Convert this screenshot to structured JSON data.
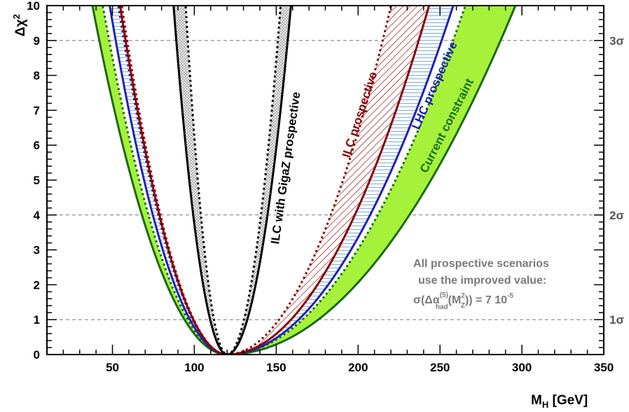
{
  "chart_data": {
    "type": "line",
    "x_range": [
      10,
      350
    ],
    "y_range": [
      0,
      10
    ],
    "x_ticks": [
      50,
      100,
      150,
      200,
      250,
      300,
      350
    ],
    "y_ticks": [
      0,
      1,
      2,
      3,
      4,
      5,
      6,
      7,
      8,
      9,
      10
    ],
    "xlabel_main": "M",
    "xlabel_sub": "H",
    "xlabel_unit": " [GeV]",
    "ylabel_delta": "Δχ",
    "ylabel_sup": "2",
    "grid": false,
    "sigma_lines": [
      {
        "y": 1,
        "label": "1σ"
      },
      {
        "y": 4,
        "label": "2σ"
      },
      {
        "y": 9,
        "label": "3σ"
      }
    ],
    "bands": [
      {
        "name": "Current constraint",
        "color": "#a6f23a",
        "style": "filled",
        "inner": {
          "x0": 120,
          "yref": 9,
          "xl": 48,
          "xr": 258
        },
        "outer": {
          "x0": 120,
          "yref": 9,
          "xl": 42,
          "xr": 287
        },
        "inner_dashed": true
      },
      {
        "name": "LHC prospective",
        "color": "#1e22b4",
        "style": "hlines",
        "inner": {
          "x0": 120,
          "yref": 9,
          "xl": 57,
          "xr": 235
        },
        "outer": {
          "x0": 120,
          "yref": 9,
          "xl": 52,
          "xr": 251
        },
        "inner_dashed": true
      },
      {
        "name": "ILC prospective",
        "color": "#8b0000",
        "style": "hatched",
        "inner": {
          "x0": 120,
          "yref": 9,
          "xl": 59,
          "xr": 215
        },
        "outer": {
          "x0": 120,
          "yref": 9,
          "xl": 58,
          "xr": 237
        },
        "inner_dashed": true
      },
      {
        "name": "ILC with GigaZ prospective",
        "color": "#000000",
        "style": "dotted",
        "inner": {
          "x0": 120,
          "yref": 9,
          "xl": 96,
          "xr": 151
        },
        "outer": {
          "x0": 120,
          "yref": 9,
          "xl": 89,
          "xr": 157
        },
        "inner_dashed": true
      }
    ],
    "labels": [
      {
        "text": "Current constraint",
        "color": "#1a6b1a"
      },
      {
        "text": "LHC prospective",
        "color": "#1e22b4"
      },
      {
        "text": "ILC prospective",
        "color": "#8b0000"
      },
      {
        "text": "ILC with GigaZ prospective",
        "color": "#000000"
      }
    ],
    "note": {
      "line1": "All prospective scenarios",
      "line2": "use the improved value:",
      "line3_a": "σ(Δα",
      "line3_sup": "(5)",
      "line3_sub": "had",
      "line3_b": "(M",
      "line3_sup2": "2",
      "line3_sub2": "Z",
      "line3_c": ")) = 7 10",
      "line3_sup3": "-5"
    }
  }
}
